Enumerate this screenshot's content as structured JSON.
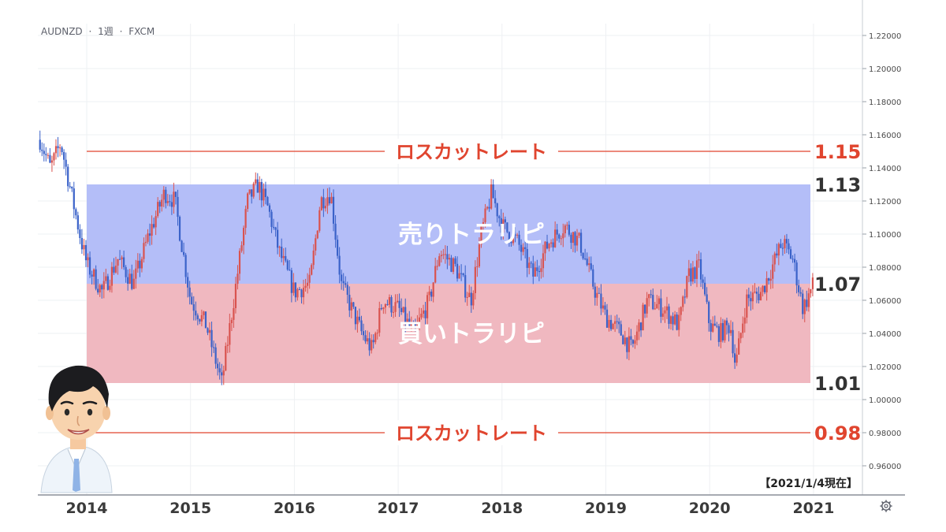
{
  "header": {
    "symbol": "AUDNZD",
    "interval": "1週",
    "source": "FXCM",
    "separator": "·"
  },
  "colors": {
    "sell_zone": "#b4bef8",
    "buy_zone": "#f0b8c0",
    "losscut": "#e0452f",
    "candle_up": "#d9534f",
    "candle_down": "#3a62c9",
    "grid": "#eef0f3"
  },
  "zones": {
    "sell_label": "売りトラリピ",
    "buy_label": "買いトラリピ"
  },
  "levels": {
    "sell_top": "1.13",
    "middle": "1.07",
    "buy_bottom": "1.01",
    "losscut_upper": "1.15",
    "losscut_lower": "0.98",
    "losscut_label": "ロスカットレート"
  },
  "date_note": "【2021/1/4現在】",
  "settings_icon": "gear-icon",
  "avatar": "presenter-avatar",
  "chart_data": {
    "type": "line",
    "title": "AUDNZD · 1週 · FXCM",
    "xlabel": "",
    "ylabel": "",
    "ylim": [
      0.946,
      1.228
    ],
    "y_ticks": [
      "1.22000",
      "1.20000",
      "1.18000",
      "1.16000",
      "1.14000",
      "1.12000",
      "1.10000",
      "1.08000",
      "1.06000",
      "1.04000",
      "1.02000",
      "1.00000",
      "0.98000",
      "0.96000"
    ],
    "x_ticks": [
      "2014",
      "2015",
      "2016",
      "2017",
      "2018",
      "2019",
      "2020",
      "2021"
    ],
    "bands": [
      {
        "name": "売りトラリピ",
        "from": 1.07,
        "to": 1.13
      },
      {
        "name": "買いトラリピ",
        "from": 1.01,
        "to": 1.07
      }
    ],
    "hlines": [
      {
        "name": "ロスカットレート",
        "y": 1.15
      },
      {
        "name": "ロスカットレート",
        "y": 0.98
      }
    ],
    "series": [
      {
        "x": [
          2013.55,
          2013.65,
          2013.75,
          2013.85,
          2013.95,
          2014.0,
          2014.15,
          2014.3,
          2014.45,
          2014.6,
          2014.75,
          2014.85,
          2015.0,
          2015.15,
          2015.3,
          2015.45,
          2015.55,
          2015.65,
          2015.75,
          2015.85,
          2016.0,
          2016.15,
          2016.25,
          2016.35,
          2016.45,
          2016.55,
          2016.65,
          2016.75,
          2016.85,
          2017.0,
          2017.15,
          2017.3,
          2017.4,
          2017.55,
          2017.7,
          2017.8,
          2017.9,
          2018.0,
          2018.15,
          2018.3,
          2018.45,
          2018.6,
          2018.75,
          2018.9,
          2019.0,
          2019.15,
          2019.25,
          2019.4,
          2019.55,
          2019.7,
          2019.8,
          2019.9,
          2020.0,
          2020.1,
          2020.2,
          2020.25,
          2020.35,
          2020.5,
          2020.6,
          2020.7,
          2020.8,
          2020.9,
          2021.0
        ],
        "y": [
          1.157,
          1.14,
          1.155,
          1.125,
          1.095,
          1.082,
          1.065,
          1.085,
          1.07,
          1.1,
          1.125,
          1.12,
          1.06,
          1.045,
          1.01,
          1.075,
          1.12,
          1.13,
          1.115,
          1.09,
          1.065,
          1.07,
          1.12,
          1.125,
          1.07,
          1.055,
          1.04,
          1.03,
          1.06,
          1.055,
          1.04,
          1.06,
          1.09,
          1.08,
          1.06,
          1.1,
          1.125,
          1.105,
          1.095,
          1.075,
          1.095,
          1.105,
          1.095,
          1.065,
          1.05,
          1.04,
          1.03,
          1.06,
          1.055,
          1.045,
          1.075,
          1.08,
          1.045,
          1.04,
          1.045,
          1.02,
          1.06,
          1.065,
          1.08,
          1.095,
          1.085,
          1.055,
          1.07
        ]
      }
    ]
  }
}
